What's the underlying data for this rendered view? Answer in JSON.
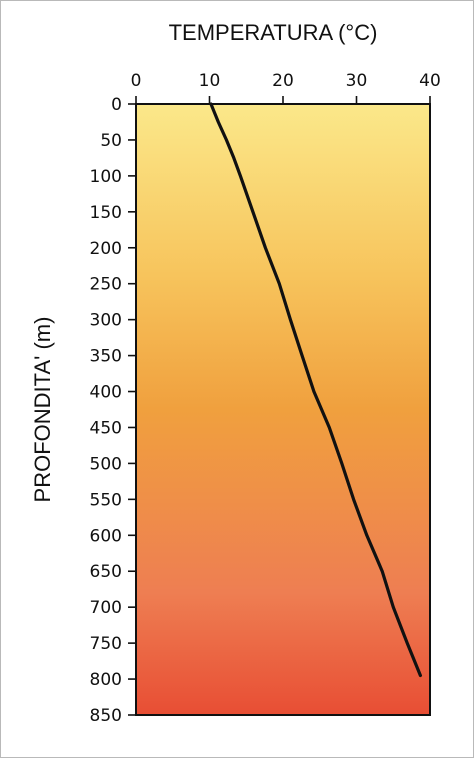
{
  "chart_data": {
    "type": "line",
    "xlabel": "TEMPERATURA (°C)",
    "ylabel": "PROFONDITA' (m)",
    "x_axis_position": "top",
    "y_axis_inverted": true,
    "xlim": [
      0,
      40
    ],
    "ylim": [
      0,
      850
    ],
    "x_ticks": [
      "0",
      "10",
      "20",
      "30",
      "40"
    ],
    "y_ticks": [
      "0",
      "50",
      "100",
      "150",
      "200",
      "250",
      "300",
      "350",
      "400",
      "450",
      "500",
      "550",
      "600",
      "650",
      "700",
      "750",
      "800",
      "850"
    ],
    "grid": false,
    "background_gradient": [
      "#fbe88a",
      "#f7c45c",
      "#f0a03e",
      "#ee7e52",
      "#e84e34"
    ],
    "line_color": "#111111",
    "series": [
      {
        "depth": [
          0,
          10,
          25,
          50,
          75,
          100,
          150,
          200,
          250,
          300,
          350,
          400,
          450,
          500,
          550,
          600,
          650,
          700,
          750,
          795
        ],
        "temperature": [
          10.2,
          10.6,
          11.2,
          12.3,
          13.3,
          14.2,
          15.9,
          17.6,
          19.5,
          21.0,
          22.6,
          24.2,
          26.3,
          28.0,
          29.6,
          31.4,
          33.5,
          35.0,
          36.9,
          38.7
        ]
      }
    ]
  }
}
